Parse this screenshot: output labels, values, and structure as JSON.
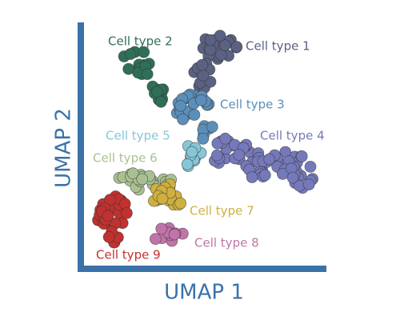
{
  "x_axis_label": "UMAP 1",
  "y_axis_label": "UMAP 2",
  "clusters": [
    {
      "label": "Cell type 1",
      "color": "#5a6182"
    },
    {
      "label": "Cell type 2",
      "color": "#2f6f57"
    },
    {
      "label": "Cell type 3",
      "color": "#5b8fba"
    },
    {
      "label": "Cell type 4",
      "color": "#7579ba"
    },
    {
      "label": "Cell type 5",
      "color": "#86c6d8"
    },
    {
      "label": "Cell type 6",
      "color": "#a9c192"
    },
    {
      "label": "Cell type 7",
      "color": "#cfb03f"
    },
    {
      "label": "Cell type 8",
      "color": "#c173aa"
    },
    {
      "label": "Cell type 9",
      "color": "#c1312f"
    }
  ]
}
